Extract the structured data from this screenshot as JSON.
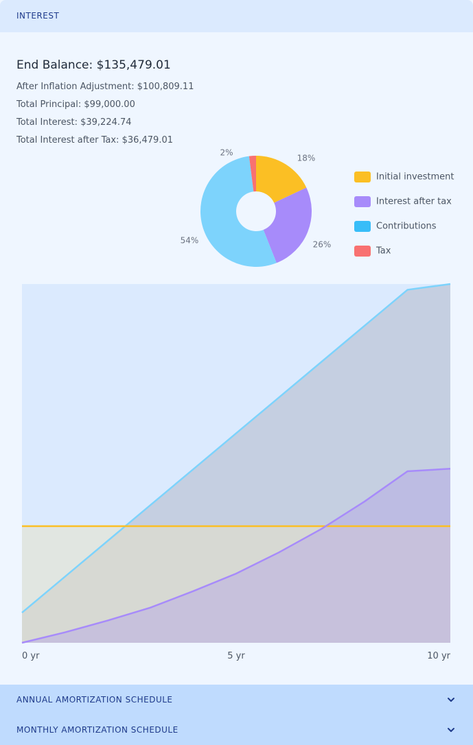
{
  "header": {
    "title": "INTEREST"
  },
  "summary": {
    "end_balance": "End Balance: $135,479.01",
    "after_inflation": "After Inflation Adjustment: $100,809.11",
    "total_principal": "Total Principal: $99,000.00",
    "total_interest": "Total Interest: $39,224.74",
    "total_interest_after_tax": "Total Interest after Tax: $36,479.01"
  },
  "chart_data": [
    {
      "type": "pie",
      "donut": true,
      "slices": [
        {
          "name": "Initial investment",
          "value": 18,
          "label": "18%",
          "color": "#fbbf24"
        },
        {
          "name": "Interest after tax",
          "value": 26,
          "label": "26%",
          "color": "#a78bfa"
        },
        {
          "name": "Contributions",
          "value": 54,
          "label": "54%",
          "color": "#7dd3fc"
        },
        {
          "name": "Tax",
          "value": 2,
          "label": "2%",
          "color": "#f87171"
        }
      ],
      "legend": {
        "placement": "right",
        "items": [
          {
            "name": "Initial investment",
            "color": "#fbbf24"
          },
          {
            "name": "Interest after tax",
            "color": "#a78bfa"
          },
          {
            "name": "Contributions",
            "color": "#38bdf8"
          },
          {
            "name": "Tax",
            "color": "#f87171"
          }
        ]
      }
    },
    {
      "type": "area",
      "x": [
        0,
        1,
        2,
        3,
        4,
        5,
        6,
        7,
        8,
        9,
        10
      ],
      "xticks": [
        {
          "value": 0,
          "label": "0 yr"
        },
        {
          "value": 5,
          "label": "5 yr"
        },
        {
          "value": 10,
          "label": "10 yr"
        }
      ],
      "ylim": [
        0,
        100
      ],
      "grid": false,
      "series": [
        {
          "name": "Contributions",
          "color": "#7dd3fc",
          "values": [
            8.4,
            18.4,
            28.4,
            38.4,
            48.4,
            58.4,
            68.4,
            78.4,
            88.4,
            98.4,
            100
          ]
        },
        {
          "name": "Initial investment",
          "color": "#fbbf24",
          "values": [
            32.5,
            32.5,
            32.5,
            32.5,
            32.5,
            32.5,
            32.5,
            32.5,
            32.5,
            32.5,
            32.5
          ]
        },
        {
          "name": "Interest after tax",
          "color": "#a78bfa",
          "values": [
            0,
            2.9,
            6.2,
            9.8,
            14.4,
            19.3,
            25.2,
            31.8,
            39.4,
            47.8,
            48.5
          ]
        }
      ]
    }
  ],
  "accordions": [
    {
      "label": "ANNUAL AMORTIZATION SCHEDULE"
    },
    {
      "label": "MONTHLY AMORTIZATION SCHEDULE"
    }
  ]
}
